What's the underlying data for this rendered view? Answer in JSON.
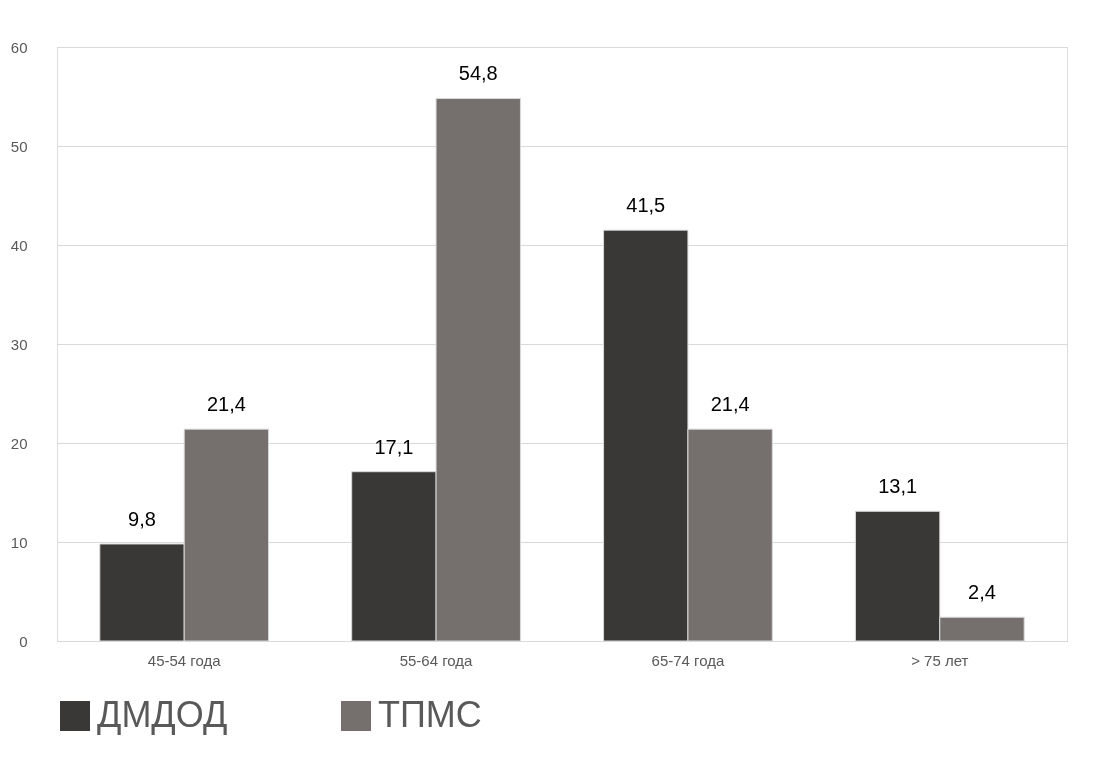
{
  "chart_data": {
    "type": "bar",
    "categories": [
      "45-54 года",
      "55-64 года",
      "65-74 года",
      "> 75 лет"
    ],
    "series": [
      {
        "name": "ДМДОД",
        "color": "#3a3836",
        "values": [
          9.8,
          17.1,
          41.5,
          13.1
        ],
        "value_labels": [
          "9,8",
          "17,1",
          "41,5",
          "13,1"
        ]
      },
      {
        "name": "ТПМС",
        "color": "#75706d",
        "values": [
          21.4,
          54.8,
          21.4,
          2.4
        ],
        "value_labels": [
          "21,4",
          "54,8",
          "21,4",
          "2,4"
        ]
      }
    ],
    "ylim": [
      0,
      60
    ],
    "yticks": [
      0,
      10,
      20,
      30,
      40,
      50,
      60
    ],
    "grid": "y",
    "legend": "bottom"
  }
}
